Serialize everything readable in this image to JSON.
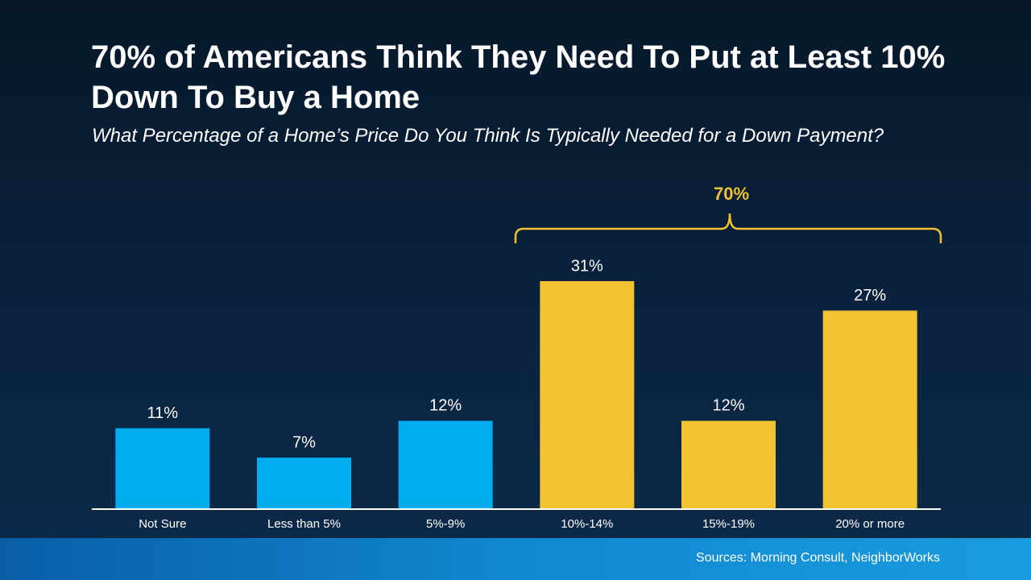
{
  "chart_data": {
    "type": "bar",
    "title": "70% of Americans Think They Need To Put at Least 10% Down To Buy a Home",
    "subtitle": "What Percentage of a Home’s Price Do You Think Is Typically Needed for a Down Payment?",
    "categories": [
      "Not Sure",
      "Less than 5%",
      "5%-9%",
      "10%-14%",
      "15%-19%",
      "20% or more"
    ],
    "values": [
      11,
      7,
      12,
      31,
      12,
      27
    ],
    "value_labels": [
      "11%",
      "7%",
      "12%",
      "31%",
      "12%",
      "27%"
    ],
    "colors": [
      "#00aeef",
      "#00aeef",
      "#00aeef",
      "#f2c232",
      "#f2c232",
      "#f2c232"
    ],
    "annotation": "70%",
    "source": "Sources: Morning Consult, NeighborWorks"
  }
}
